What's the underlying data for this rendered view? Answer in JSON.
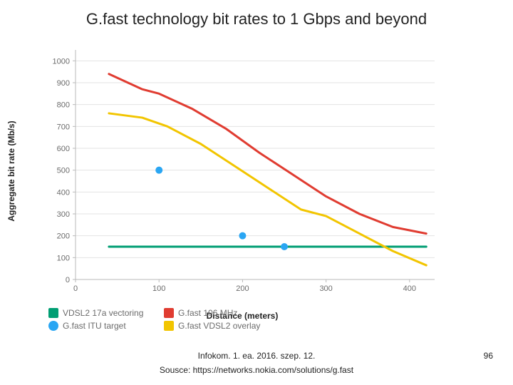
{
  "title": "G.fast technology bit rates to 1 Gbps and beyond",
  "footer": {
    "center": "Infokom. 1. ea. 2016. szep. 12.",
    "source": "Sousce: https://networks.nokia.com/solutions/g.fast",
    "page": "96"
  },
  "chart": {
    "type": "line",
    "xlabel": "Distance (meters)",
    "ylabel": "Aggregate bit rate (Mb/s)",
    "background_color": "#ffffff",
    "axis_color": "#b9b9b9",
    "grid_color": "#e3e3e3",
    "tick_label_color": "#6b6b6b",
    "label_fontsize": 12,
    "tick_fontsize": 11,
    "title_fontsize": 22,
    "xlim": [
      0,
      430
    ],
    "ylim": [
      0,
      1050
    ],
    "xticks": [
      0,
      100,
      200,
      300,
      400
    ],
    "yticks": [
      0,
      100,
      200,
      300,
      400,
      500,
      600,
      700,
      800,
      900,
      1000
    ],
    "line_width": 3,
    "series_red": {
      "label": "G.fast 106 MHz",
      "color": "#e03c31",
      "points": [
        [
          40,
          940
        ],
        [
          80,
          870
        ],
        [
          100,
          850
        ],
        [
          140,
          780
        ],
        [
          180,
          690
        ],
        [
          220,
          580
        ],
        [
          260,
          480
        ],
        [
          300,
          380
        ],
        [
          340,
          300
        ],
        [
          380,
          240
        ],
        [
          420,
          210
        ]
      ]
    },
    "series_yellow": {
      "label": "G.fast VDSL2 overlay",
      "color": "#f2c500",
      "points": [
        [
          40,
          760
        ],
        [
          80,
          740
        ],
        [
          110,
          700
        ],
        [
          150,
          620
        ],
        [
          190,
          520
        ],
        [
          230,
          420
        ],
        [
          270,
          320
        ],
        [
          300,
          290
        ],
        [
          340,
          210
        ],
        [
          380,
          130
        ],
        [
          420,
          65
        ]
      ]
    },
    "series_green": {
      "label": "VDSL2 17a vectoring",
      "color": "#009e73",
      "points": [
        [
          40,
          150
        ],
        [
          420,
          150
        ]
      ]
    },
    "scatter_blue": {
      "label": "G.fast ITU target",
      "color": "#2aa6f3",
      "marker_radius": 5,
      "points": [
        [
          100,
          500
        ],
        [
          200,
          200
        ],
        [
          250,
          150
        ]
      ]
    }
  },
  "legend": {
    "text_color": "#6b6b6b",
    "fontsize": 12,
    "items": [
      {
        "key": "series_green",
        "kind": "square",
        "color": "#009e73",
        "label": "VDSL2 17a vectoring"
      },
      {
        "key": "series_red",
        "kind": "square",
        "color": "#e03c31",
        "label": "G.fast 106 MHz"
      },
      {
        "key": "scatter_blue",
        "kind": "circle",
        "color": "#2aa6f3",
        "label": "G.fast ITU target"
      },
      {
        "key": "series_yellow",
        "kind": "square",
        "color": "#f2c500",
        "label": "G.fast VDSL2 overlay"
      }
    ]
  }
}
